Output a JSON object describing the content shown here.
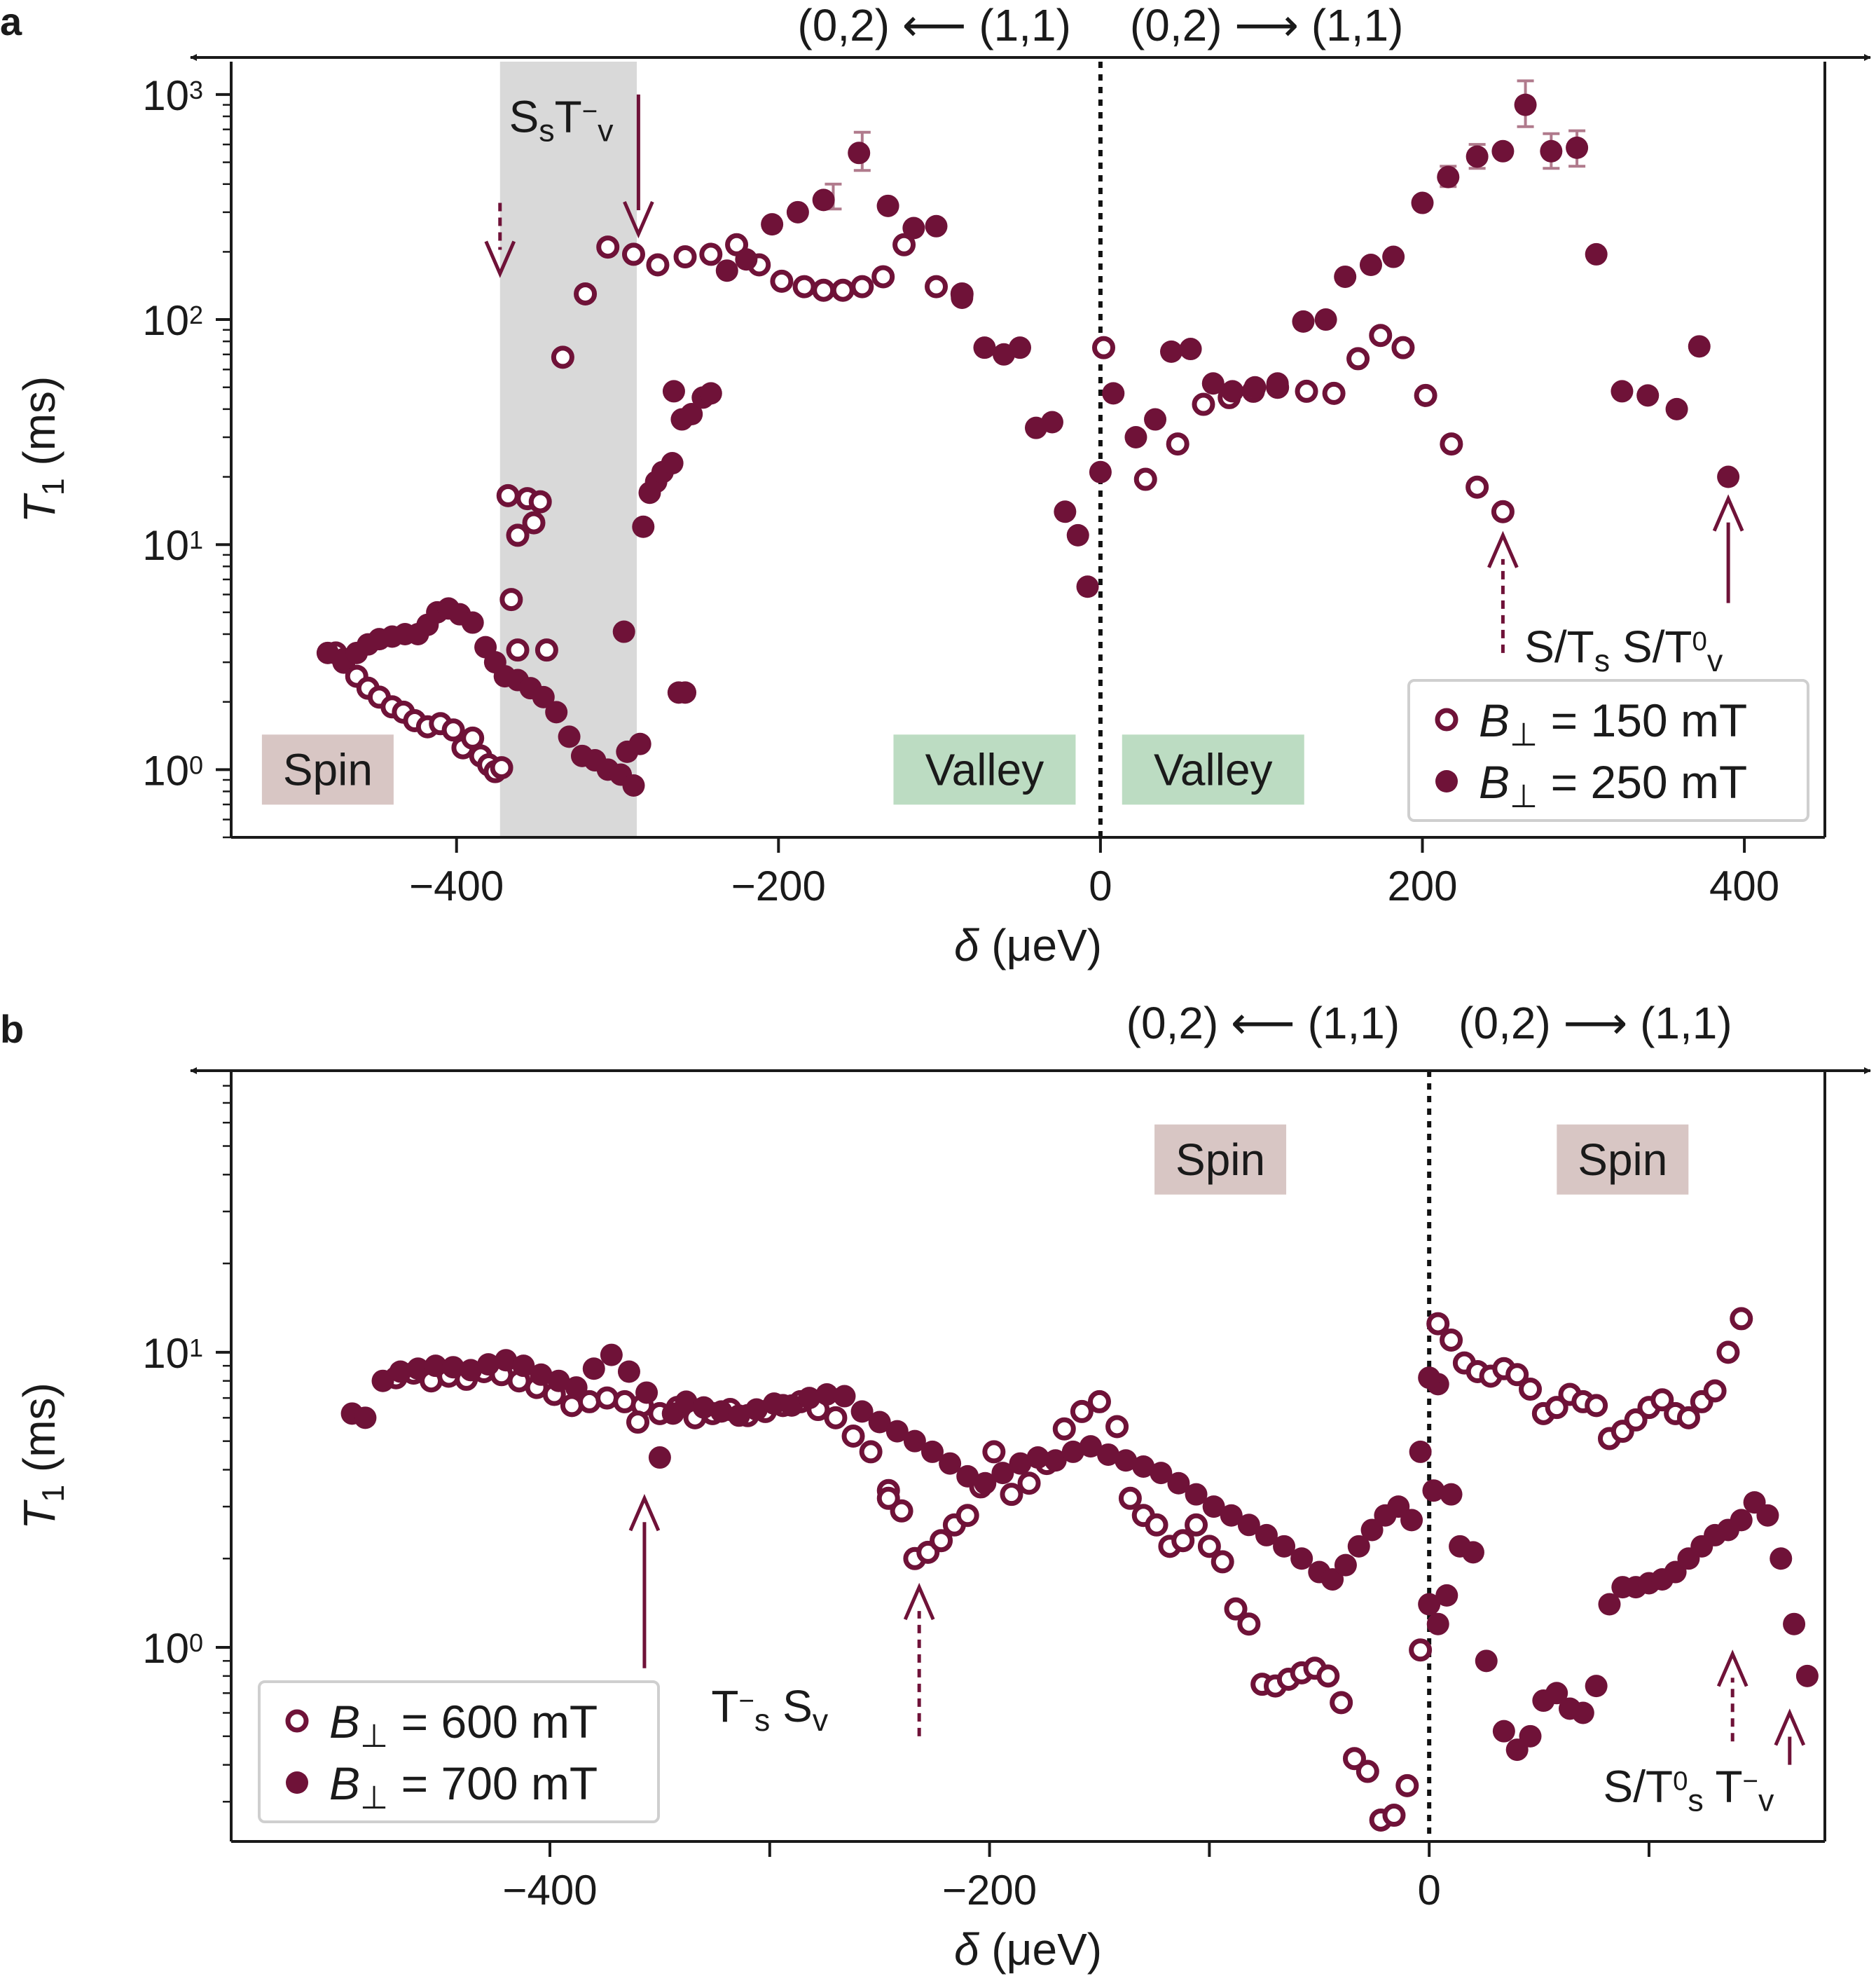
{
  "colors": {
    "marker": "#6f1238",
    "marker_light": "#b07a8c",
    "shade": "#d9d9d9",
    "spin_box": "#d8c6c4",
    "valley_box": "#bcdcc2",
    "axis": "#1a1a1a"
  },
  "chart_data": [
    {
      "panel": "a",
      "type": "scatter",
      "xlabel_sym": "δ",
      "xlabel_unit": " (μeV)",
      "ylabel_sym": "T",
      "ylabel_sub": "1",
      "ylabel_unit": " (ms)",
      "yscale": "log",
      "xlim": [
        -540,
        450
      ],
      "ylim": [
        0.5,
        1400
      ],
      "xticks": [
        -400,
        -200,
        0,
        200,
        400
      ],
      "xtick_labels": [
        "−400",
        "−200",
        "0",
        "200",
        "400"
      ],
      "yticks": [
        1,
        10,
        100,
        1000
      ],
      "ytick_labels": [
        {
          "base": "10",
          "exp": "0"
        },
        {
          "base": "10",
          "exp": "1"
        },
        {
          "base": "10",
          "exp": "2"
        },
        {
          "base": "10",
          "exp": "3"
        }
      ],
      "top_arrows": {
        "left": "(0,2) ⟵ (1,1)",
        "right": "(0,2) ⟶ (1,1)"
      },
      "shaded_region": [
        -373,
        -288
      ],
      "vline_x": 0,
      "region_labels": [
        {
          "text": "Spin",
          "x": -480,
          "y": 1.0,
          "kind": "spin"
        },
        {
          "text": "Valley",
          "x": -72,
          "y": 1.0,
          "kind": "valley"
        },
        {
          "text": "Valley",
          "x": 70,
          "y": 1.0,
          "kind": "valley"
        }
      ],
      "annotation_labels": [
        {
          "parts": [
            [
              "S",
              ""
            ],
            [
              "s",
              "sub"
            ],
            [
              "T",
              ""
            ],
            [
              "−",
              "sup"
            ],
            [
              "v",
              "sub"
            ]
          ],
          "x": -335,
          "y": 680
        },
        {
          "parts": [
            [
              "S/T",
              ""
            ],
            [
              "s",
              "sub"
            ],
            [
              "  S/T",
              ""
            ],
            [
              "0",
              "sup"
            ],
            [
              "v",
              "sub"
            ]
          ],
          "x": 325,
          "y": 3.0
        }
      ],
      "arrows": [
        {
          "x": -287,
          "y_tail": 1000,
          "y_head": 240,
          "dashed": false
        },
        {
          "x": -373,
          "y_tail": 330,
          "y_head": 160,
          "dashed": true
        },
        {
          "x": 250,
          "y_tail": 3.3,
          "y_head": 11.0,
          "dashed": true
        },
        {
          "x": 390,
          "y_tail": 5.5,
          "y_head": 16,
          "dashed": false
        }
      ],
      "series": [
        {
          "name": "B⊥ = 150 mT",
          "legend_sym": "B",
          "legend_sub": "⊥",
          "legend_val": " = 150 mT",
          "marker": "open",
          "x": [
            -475,
            -470,
            -462,
            -455,
            -448,
            -440,
            -433,
            -426,
            -418,
            -410,
            -402,
            -396,
            -390,
            -385,
            -380,
            -376,
            -372,
            -368,
            -362,
            -356,
            -352,
            -348,
            -344,
            -334,
            -320,
            -306,
            -290,
            -275,
            -258,
            -242,
            -226,
            -212,
            -198,
            -184,
            -172,
            -160,
            -148,
            -135,
            -122,
            -102,
            -86
          ],
          "y": [
            3.3,
            3.0,
            2.6,
            2.3,
            2.1,
            1.9,
            1.8,
            1.65,
            1.55,
            1.6,
            1.5,
            1.25,
            1.38,
            1.15,
            1.05,
            0.98,
            1.02,
            16.5,
            11.0,
            16.0,
            12.5,
            15.5,
            3.4,
            68,
            130,
            210,
            195,
            175,
            190,
            195,
            215,
            175,
            148,
            140,
            135,
            135,
            140,
            155,
            215,
            140,
            130
          ],
          "errors": [],
          "extra_x": [
            -366,
            -362
          ],
          "extra_y": [
            5.7,
            3.4
          ]
        },
        {
          "name": "B⊥ = 250 mT",
          "legend_sym": "B",
          "legend_sub": "⊥",
          "legend_val": " = 250 mT",
          "marker": "filled",
          "x": [
            -480,
            -470,
            -462,
            -455,
            -448,
            -440,
            -432,
            -424,
            -418,
            -412,
            -405,
            -398,
            -390,
            -382,
            -376,
            -370,
            -362,
            -354,
            -346,
            -338,
            -330,
            -322,
            -314,
            -306,
            -298,
            -294,
            -290,
            -286,
            -284,
            -280,
            -276,
            -272,
            -266,
            -260,
            -254,
            -247,
            -242,
            -232,
            -220,
            -204,
            -188,
            -172,
            -150,
            -132,
            -116,
            -102,
            -86,
            -72,
            -60,
            -50,
            -40,
            -30,
            -22,
            -14,
            -8
          ],
          "y": [
            3.3,
            3.1,
            3.3,
            3.6,
            3.8,
            3.9,
            4.0,
            4.0,
            4.4,
            5.0,
            5.2,
            4.9,
            4.5,
            3.5,
            3.0,
            2.6,
            2.5,
            2.3,
            2.1,
            1.8,
            1.4,
            1.15,
            1.1,
            1.0,
            0.95,
            1.2,
            0.85,
            1.3,
            12.0,
            17.0,
            19.0,
            21.0,
            23.0,
            36.0,
            38.0,
            45.0,
            47.0,
            165,
            185,
            265,
            300,
            340,
            550,
            320,
            255,
            260,
            125,
            75,
            70,
            75,
            33,
            35,
            14,
            11,
            6.5
          ],
          "errors": [],
          "extra_x": [
            -296,
            -262,
            -258,
            -265
          ],
          "extra_y": [
            4.1,
            2.2,
            2.2,
            48
          ]
        },
        {
          "name": "B⊥ = 150 mT (right)",
          "marker": "open",
          "x": [
            2,
            28,
            48,
            64,
            80,
            95,
            110,
            128,
            145,
            160,
            174,
            188,
            202,
            218,
            234,
            250
          ],
          "y": [
            75,
            19.5,
            28,
            42,
            45,
            48,
            50,
            48,
            47,
            67,
            85,
            75,
            46,
            28,
            18,
            14
          ]
        },
        {
          "name": "B⊥ = 250 mT (right)",
          "marker": "filled",
          "x": [
            0,
            8,
            22,
            34,
            44,
            56,
            70,
            82,
            96,
            110,
            126,
            140,
            152,
            168,
            182,
            200,
            216,
            234,
            250,
            264,
            280,
            296,
            308,
            324,
            340,
            358,
            372,
            390
          ],
          "y": [
            21,
            47,
            30,
            36,
            72,
            74,
            52,
            48,
            50,
            52,
            98,
            100,
            155,
            175,
            190,
            330,
            430,
            530,
            560,
            900,
            560,
            580,
            195,
            48,
            46,
            40,
            76,
            20
          ]
        }
      ],
      "errorbars": [
        {
          "x": -148,
          "y": 550,
          "lo": 460,
          "hi": 680
        },
        {
          "x": 264,
          "y": 900,
          "lo": 720,
          "hi": 1150
        },
        {
          "x": 280,
          "y": 560,
          "lo": 470,
          "hi": 670
        },
        {
          "x": 296,
          "y": 580,
          "lo": 480,
          "hi": 690
        },
        {
          "x": 234,
          "y": 530,
          "lo": 470,
          "hi": 600
        },
        {
          "x": 216,
          "y": 430,
          "lo": 390,
          "hi": 480
        },
        {
          "x": -166,
          "y": 350,
          "lo": 310,
          "hi": 400
        }
      ],
      "legend": {
        "placement": "lower-right"
      }
    },
    {
      "panel": "b",
      "type": "scatter",
      "xlabel_sym": "δ",
      "xlabel_unit": " (μeV)",
      "ylabel_sym": "T",
      "ylabel_sub": "1",
      "ylabel_unit": " (ms)",
      "yscale": "log",
      "xlim": [
        -545,
        180
      ],
      "ylim": [
        0.22,
        90
      ],
      "xticks": [
        -400,
        -200,
        0
      ],
      "xtick_labels": [
        "−400",
        "−200",
        "0"
      ],
      "xminor_ticks": [
        -300,
        -100,
        100
      ],
      "yticks": [
        1,
        10
      ],
      "ytick_labels": [
        {
          "base": "10",
          "exp": "0"
        },
        {
          "base": "10",
          "exp": "1"
        }
      ],
      "top_arrows": {
        "left": "(0,2) ⟵ (1,1)",
        "right": "(0,2) ⟶ (1,1)"
      },
      "vline_x": 0,
      "region_labels": [
        {
          "text": "Spin",
          "x": -95,
          "y": 45,
          "kind": "spin"
        },
        {
          "text": "Spin",
          "x": 88,
          "y": 45,
          "kind": "spin"
        }
      ],
      "annotation_labels": [
        {
          "parts": [
            [
              "T",
              ""
            ],
            [
              "−",
              "sup"
            ],
            [
              "s",
              "sub"
            ],
            [
              " S",
              ""
            ],
            [
              "v",
              "sub"
            ]
          ],
          "x": -300,
          "y": 0.56
        },
        {
          "parts": [
            [
              "S/T",
              ""
            ],
            [
              "0",
              "sup"
            ],
            [
              "s",
              "sub"
            ],
            [
              " T",
              ""
            ],
            [
              "−",
              "sup"
            ],
            [
              "v",
              "sub"
            ]
          ],
          "x": 118,
          "y": 0.3
        }
      ],
      "arrows": [
        {
          "x": -357,
          "y_tail": 0.85,
          "y_head": 3.2,
          "dashed": false
        },
        {
          "x": -232,
          "y_tail": 0.5,
          "y_head": 1.6,
          "dashed": true
        },
        {
          "x": 138,
          "y_tail": 0.48,
          "y_head": 0.95,
          "dashed": true
        },
        {
          "x": 164,
          "y_tail": 0.4,
          "y_head": 0.6,
          "dashed": false
        }
      ],
      "series": [
        {
          "name": "B⊥ = 600 mT",
          "legend_sym": "B",
          "legend_sub": "⊥",
          "legend_val": " = 600 mT",
          "marker": "open",
          "x": [
            -470,
            -462,
            -454,
            -446,
            -438,
            -430,
            -422,
            -414,
            -406,
            -398,
            -390,
            -382,
            -374,
            -366,
            -358,
            -350,
            -342,
            -334,
            -326,
            -318,
            -310,
            -302,
            -294,
            -286,
            -278,
            -270,
            -262,
            -254,
            -246,
            -240,
            -234,
            -228,
            -222,
            -216,
            -210,
            -204,
            -198,
            -190,
            -182,
            -174,
            -166,
            -158,
            -150,
            -142,
            -136,
            -130,
            -124,
            -118,
            -112,
            -106,
            -100,
            -94,
            -88,
            -82,
            -76,
            -70,
            -64,
            -58,
            -52,
            -46,
            -40,
            -34,
            -28,
            -22,
            -16,
            -10,
            -4,
            4,
            10,
            16,
            22,
            28,
            34,
            40,
            46,
            52,
            58,
            64,
            70,
            76,
            82,
            88,
            94,
            100,
            106,
            112,
            118,
            124,
            130,
            136,
            142
          ],
          "y": [
            8.2,
            8.5,
            8.0,
            8.3,
            8.1,
            8.6,
            8.4,
            8.0,
            7.6,
            7.2,
            6.6,
            6.8,
            7.0,
            6.8,
            6.6,
            6.2,
            6.5,
            6.0,
            6.2,
            6.4,
            6.1,
            6.3,
            6.6,
            6.8,
            6.4,
            6.0,
            5.2,
            4.6,
            3.4,
            2.9,
            2.0,
            2.1,
            2.3,
            2.6,
            2.8,
            3.5,
            4.6,
            3.3,
            3.6,
            4.2,
            5.5,
            6.3,
            6.8,
            5.6,
            3.2,
            2.8,
            2.6,
            2.2,
            2.3,
            2.6,
            2.2,
            1.95,
            1.35,
            1.2,
            0.75,
            0.74,
            0.78,
            0.82,
            0.85,
            0.8,
            0.65,
            0.42,
            0.38,
            0.26,
            0.27,
            0.34,
            0.98,
            12.5,
            11.0,
            9.2,
            8.6,
            8.3,
            8.8,
            8.4,
            7.5,
            6.2,
            6.5,
            7.2,
            6.8,
            6.6,
            5.1,
            5.4,
            5.9,
            6.5,
            6.9,
            6.2,
            6.0,
            6.8,
            7.4,
            10.0,
            13.0
          ],
          "errors": [],
          "extra_x": [
            -246,
            -360
          ],
          "extra_y": [
            3.2,
            5.8
          ]
        },
        {
          "name": "B⊥ = 700 mT",
          "legend_sym": "B",
          "legend_sub": "⊥",
          "legend_val": " = 700 mT",
          "marker": "filled",
          "x": [
            -490,
            -484,
            -476,
            -468,
            -460,
            -452,
            -444,
            -436,
            -428,
            -420,
            -412,
            -404,
            -396,
            -388,
            -380,
            -372,
            -364,
            -356,
            -350,
            -344,
            -338,
            -330,
            -322,
            -314,
            -306,
            -298,
            -290,
            -282,
            -274,
            -266,
            -258,
            -250,
            -242,
            -234,
            -226,
            -218,
            -210,
            -202,
            -194,
            -186,
            -178,
            -170,
            -162,
            -154,
            -146,
            -138,
            -130,
            -122,
            -114,
            -106,
            -98,
            -90,
            -82,
            -74,
            -66,
            -58,
            -50,
            -44,
            -38,
            -32,
            -26,
            -20,
            -14,
            -8,
            -4,
            0,
            4,
            8,
            14,
            20,
            26,
            34,
            40,
            46,
            52,
            58,
            64,
            70,
            76,
            82,
            88,
            94,
            100,
            106,
            112,
            118,
            124,
            130,
            136,
            142,
            148,
            154,
            160,
            166
          ],
          "y": [
            6.2,
            6.0,
            8.0,
            8.6,
            8.8,
            9.0,
            8.9,
            8.7,
            9.1,
            9.4,
            9.0,
            8.4,
            8.0,
            7.6,
            8.8,
            9.8,
            8.6,
            7.3,
            4.4,
            6.2,
            6.8,
            6.5,
            6.3,
            6.1,
            6.4,
            6.7,
            6.6,
            7.0,
            7.2,
            7.1,
            6.3,
            5.8,
            5.4,
            5.0,
            4.6,
            4.2,
            3.8,
            3.6,
            3.9,
            4.2,
            4.4,
            4.3,
            4.6,
            4.8,
            4.5,
            4.3,
            4.1,
            3.9,
            3.6,
            3.3,
            3.0,
            2.8,
            2.6,
            2.4,
            2.2,
            2.0,
            1.8,
            1.7,
            1.9,
            2.2,
            2.5,
            2.8,
            3.0,
            2.7,
            4.6,
            1.4,
            1.2,
            1.5,
            2.2,
            2.1,
            0.9,
            0.52,
            0.45,
            0.5,
            0.66,
            0.7,
            0.62,
            0.6,
            0.74,
            1.4,
            1.6,
            1.6,
            1.65,
            1.7,
            1.8,
            2.0,
            2.2,
            2.4,
            2.5,
            2.7,
            3.1,
            2.8,
            2.0,
            1.2
          ],
          "errors": [],
          "extra_x": [
            4,
            2,
            10,
            172,
            0
          ],
          "extra_y": [
            7.8,
            3.4,
            3.3,
            0.8,
            8.2
          ]
        }
      ],
      "legend": {
        "placement": "lower-left"
      }
    }
  ]
}
